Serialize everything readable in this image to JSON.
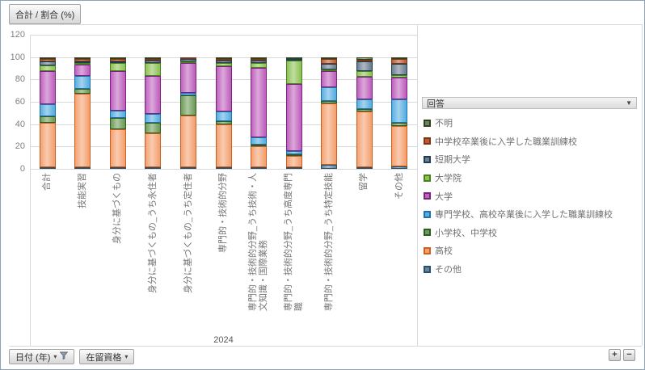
{
  "window": {
    "title_button": "合計 / 割合 (%)"
  },
  "legend": {
    "header": "回答",
    "items": [
      {
        "label": "不明",
        "fill": "#72815f",
        "border": "#2c431d"
      },
      {
        "label": "中学校卒業後に入学した職業訓練校",
        "fill": "#c05a2e",
        "border": "#7d3512"
      },
      {
        "label": "短期大学",
        "fill": "#6d7f91",
        "border": "#203c55"
      },
      {
        "label": "大学院",
        "fill": "#8ec255",
        "border": "#47801f"
      },
      {
        "label": "大学",
        "fill": "#bf61bd",
        "border": "#7b2180"
      },
      {
        "label": "専門学校、高校卒業後に入学した職業訓練校",
        "fill": "#58aee0",
        "border": "#1d71ad"
      },
      {
        "label": "小学校、中学校",
        "fill": "#6d9c58",
        "border": "#305b22"
      },
      {
        "label": "高校",
        "fill": "#f4a170",
        "border": "#cf5d1c"
      },
      {
        "label": "その他",
        "fill": "#5f86a5",
        "border": "#2c4d66"
      }
    ]
  },
  "chart_data": {
    "type": "bar",
    "stacked": true,
    "units": "percent",
    "title": "合計 / 割合 (%)",
    "ylim": [
      0,
      120
    ],
    "yticks": [
      0,
      20,
      40,
      60,
      80,
      100,
      120
    ],
    "grid": true,
    "legend_position": "right",
    "x_group_label": "2024",
    "categories": [
      "合計",
      "技能実習",
      "身分に基づくもの",
      "身分に基づくもの_うち永住者",
      "身分に基づくもの_うち定住者",
      "専門的・技術的分野",
      "専門的・技術的分野_うち技術・人\n文知識・国際業務",
      "専門的・技術的分野_うち高度専門\n職",
      "専門的・技術的分野_うち特定技能",
      "留学",
      "その他"
    ],
    "series": [
      {
        "name": "その他",
        "values": [
          1,
          1,
          1,
          1,
          1,
          1,
          1,
          1,
          3.5,
          1.5,
          2.5
        ]
      },
      {
        "name": "高校",
        "values": [
          40,
          66.5,
          34,
          31,
          47,
          39,
          19,
          10.5,
          56,
          50,
          36
        ]
      },
      {
        "name": "小学校、中学校",
        "values": [
          5.5,
          5,
          10,
          9,
          18,
          2.5,
          0.5,
          0.5,
          2,
          2.5,
          3
        ]
      },
      {
        "name": "専門学校、高校卒業後に入学した職業訓練校",
        "values": [
          11,
          11.5,
          6.5,
          8,
          2.5,
          9,
          7,
          2.5,
          12,
          8.5,
          21
        ]
      },
      {
        "name": "大学",
        "values": [
          30,
          10,
          36,
          34.5,
          27.5,
          40.5,
          64,
          61.5,
          15,
          20,
          20
        ]
      },
      {
        "name": "大学院",
        "values": [
          5,
          0.5,
          7,
          11.5,
          0.5,
          3.5,
          4,
          22,
          0.5,
          5.5,
          2
        ]
      },
      {
        "name": "短期大学",
        "values": [
          3.5,
          1.5,
          1.5,
          2,
          2,
          1.5,
          2,
          0.5,
          5,
          8.5,
          10.5
        ]
      },
      {
        "name": "中学校卒業後に入学した職業訓練校",
        "values": [
          2,
          2.5,
          2,
          1,
          1.5,
          1,
          0.5,
          0,
          4,
          1,
          4.5
        ]
      },
      {
        "name": "不明",
        "values": [
          2,
          1.5,
          2,
          2,
          0,
          2,
          2,
          1.5,
          2,
          2.5,
          0.5
        ]
      }
    ]
  },
  "filters": {
    "date_label": "日付 (年)",
    "visa_label": "在留資格"
  },
  "zoom_controls": {
    "plus": "+",
    "minus": "−"
  }
}
